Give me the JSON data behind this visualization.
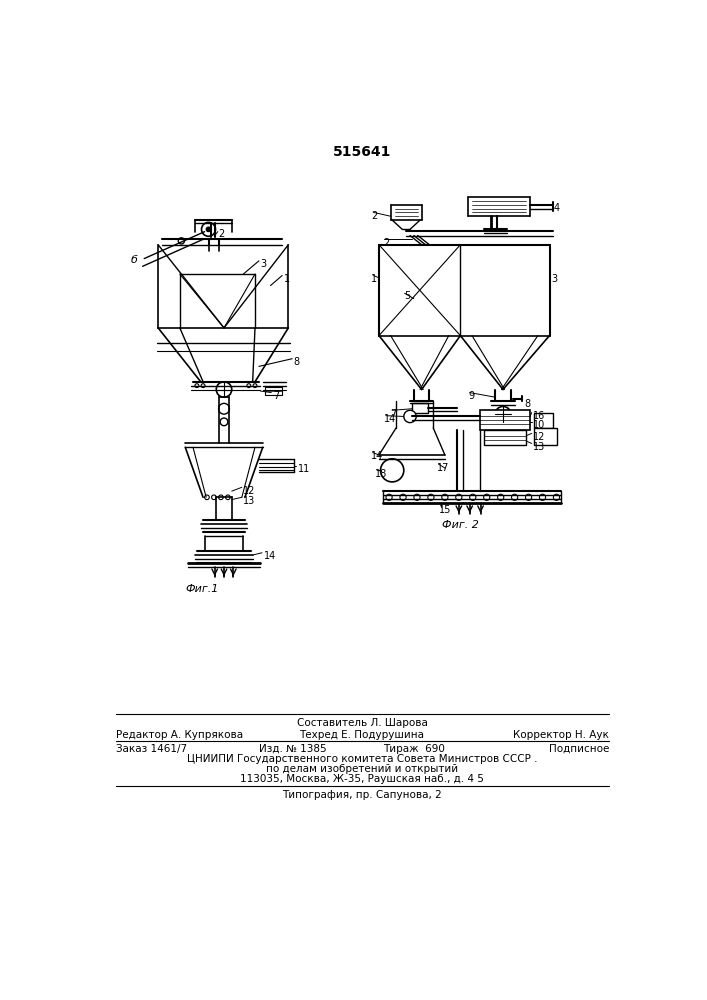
{
  "patent_number": "515641",
  "fig1_caption": "Фиг.1",
  "fig2_caption": "Фиг. 2",
  "footer_line0": "Составитель Л. Шарова",
  "footer_line1_left": "Редактор А. Купрякова",
  "footer_line1_center": "Техред Е. Подурушина",
  "footer_line1_right": "Корректор Н. Аук",
  "footer_line2_col1": "Заказ 1461/7",
  "footer_line2_col2": "Изд. № 1385",
  "footer_line2_col3": "Тираж  690",
  "footer_line2_col4": "Подписное",
  "footer_line3": "ЦНИИПИ Государственного комитета Совета Министров СССР .",
  "footer_line4": "по делам изобретений и открытий",
  "footer_line5": "113035, Москва, Ж-35, Раушская наб., д. 4 5",
  "footer_line6": "Типография, пр. Сапунова, 2",
  "bg_color": "#ffffff",
  "line_color": "#000000"
}
